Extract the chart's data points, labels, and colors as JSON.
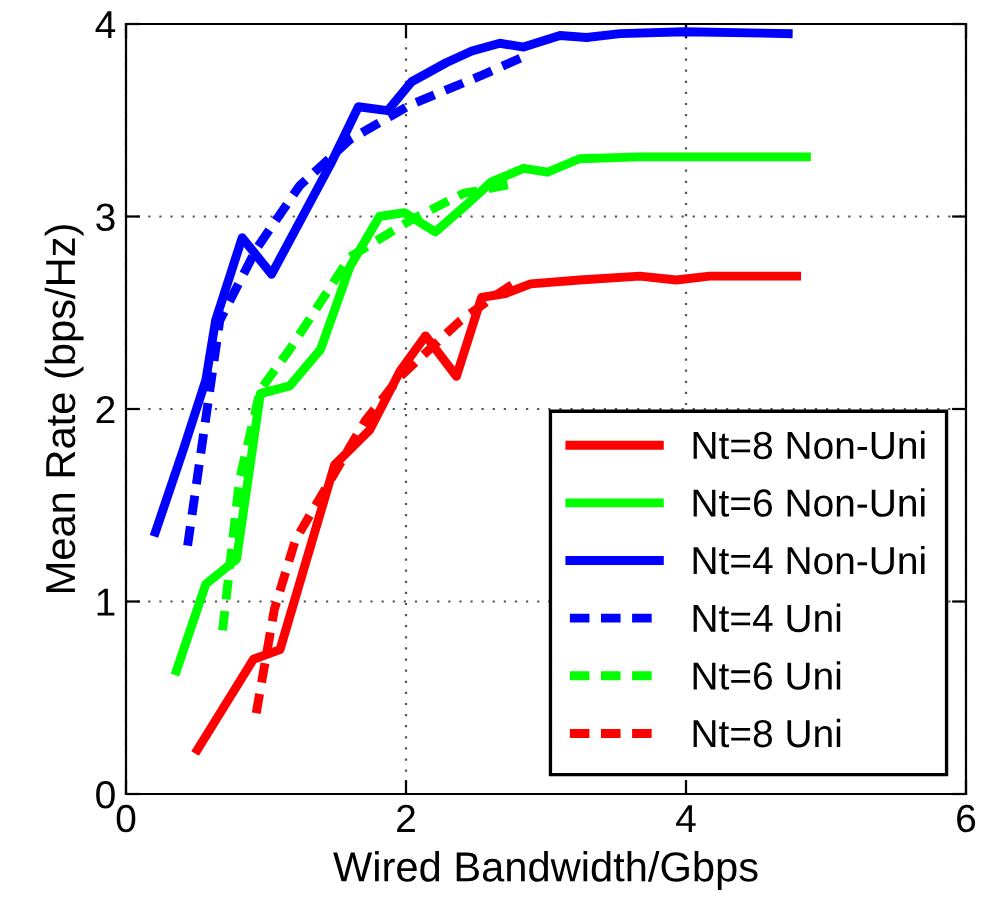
{
  "chart_data": {
    "type": "line",
    "xlabel": "Wired Bandwidth/Gbps",
    "ylabel": "Mean Rate (bps/Hz)",
    "xlim": [
      0,
      6
    ],
    "ylim": [
      0,
      4
    ],
    "xticks": [
      0,
      2,
      4,
      6
    ],
    "yticks": [
      0,
      1,
      2,
      3,
      4
    ],
    "grid": true,
    "legend": "lower right",
    "series": [
      {
        "name": "Nt=8 Non-Uni",
        "color": "#ff0000",
        "line_style": "solid",
        "x": [
          0.51,
          0.74,
          0.91,
          1.1,
          1.49,
          1.74,
          1.96,
          2.14,
          2.36,
          2.54,
          2.71,
          2.89,
          3.24,
          3.67,
          3.93,
          4.17,
          4.79
        ],
        "values": [
          0.23,
          0.5,
          0.7,
          0.75,
          1.71,
          1.89,
          2.2,
          2.38,
          2.17,
          2.58,
          2.6,
          2.65,
          2.67,
          2.69,
          2.67,
          2.69,
          2.69
        ]
      },
      {
        "name": "Nt=6 Non-Uni",
        "color": "#00ff00",
        "line_style": "solid",
        "x": [
          0.36,
          0.57,
          0.79,
          0.96,
          1.17,
          1.39,
          1.6,
          1.81,
          1.99,
          2.21,
          2.43,
          2.61,
          2.84,
          3.01,
          3.24,
          3.67,
          4.86
        ],
        "values": [
          0.64,
          1.09,
          1.22,
          2.08,
          2.12,
          2.31,
          2.74,
          3.0,
          3.02,
          2.92,
          3.06,
          3.18,
          3.25,
          3.23,
          3.3,
          3.31,
          3.31
        ]
      },
      {
        "name": "Nt=4 Non-Uni",
        "color": "#0000ff",
        "line_style": "solid",
        "x": [
          0.21,
          0.41,
          0.57,
          0.64,
          0.83,
          1.04,
          1.46,
          1.66,
          1.87,
          2.04,
          2.29,
          2.47,
          2.67,
          2.84,
          3.1,
          3.29,
          3.53,
          3.99,
          4.73
        ],
        "values": [
          1.36,
          1.79,
          2.15,
          2.46,
          2.89,
          2.7,
          3.27,
          3.57,
          3.55,
          3.7,
          3.8,
          3.86,
          3.9,
          3.88,
          3.94,
          3.93,
          3.95,
          3.96,
          3.95
        ]
      },
      {
        "name": "Nt=4 Uni",
        "color": "#0000ff",
        "line_style": "dashed",
        "x": [
          0.44,
          0.67,
          0.93,
          1.24,
          1.6,
          2.03,
          2.53,
          2.84
        ],
        "values": [
          1.29,
          2.46,
          2.83,
          3.16,
          3.4,
          3.58,
          3.73,
          3.83
        ]
      },
      {
        "name": "Nt=6 Uni",
        "color": "#00ff00",
        "line_style": "dashed",
        "x": [
          0.69,
          0.81,
          0.96,
          1.17,
          1.6,
          2.03,
          2.41,
          2.77
        ],
        "values": [
          0.85,
          1.63,
          2.1,
          2.31,
          2.79,
          2.98,
          3.12,
          3.17
        ]
      },
      {
        "name": "Nt=8 Uni",
        "color": "#ff0000",
        "line_style": "dashed",
        "x": [
          0.93,
          1.06,
          1.21,
          1.46,
          1.71,
          1.96,
          2.39,
          2.64,
          2.81
        ],
        "values": [
          0.42,
          0.96,
          1.32,
          1.63,
          1.94,
          2.17,
          2.46,
          2.59,
          2.67
        ]
      }
    ]
  }
}
